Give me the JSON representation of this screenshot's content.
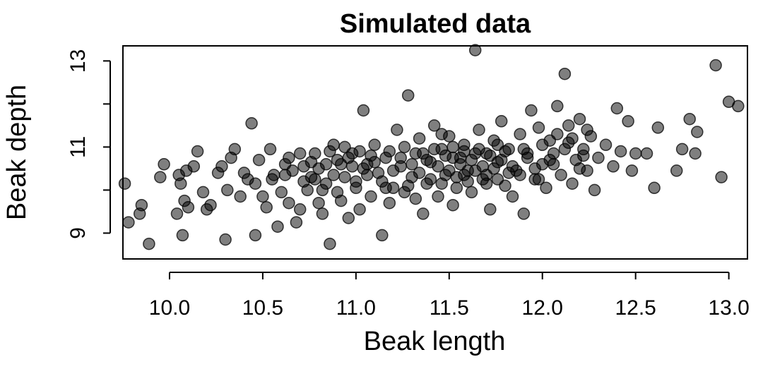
{
  "chart_data": {
    "type": "scatter",
    "title": "Simulated data",
    "xlabel": "Beak length",
    "ylabel": "Beak depth",
    "xlim": [
      9.75,
      13.1
    ],
    "ylim": [
      8.4,
      13.35
    ],
    "xticks": [
      10.0,
      10.5,
      11.0,
      11.5,
      12.0,
      12.5,
      13.0
    ],
    "xtick_labels": [
      "10.0",
      "10.5",
      "11.0",
      "11.5",
      "12.0",
      "12.5",
      "13.0"
    ],
    "yticks": [
      9,
      11,
      13
    ],
    "ytick_labels": [
      "9",
      "11",
      "13"
    ],
    "grid": false,
    "legend": "none",
    "point_color": "#000000",
    "series": [
      {
        "points": [
          [
            9.76,
            10.15
          ],
          [
            9.78,
            9.25
          ],
          [
            9.85,
            9.65
          ],
          [
            9.84,
            9.45
          ],
          [
            9.89,
            8.75
          ],
          [
            9.95,
            10.3
          ],
          [
            9.97,
            10.6
          ],
          [
            10.04,
            9.45
          ],
          [
            10.05,
            10.35
          ],
          [
            10.06,
            10.15
          ],
          [
            10.07,
            8.95
          ],
          [
            10.08,
            9.75
          ],
          [
            10.09,
            10.45
          ],
          [
            10.1,
            9.6
          ],
          [
            10.13,
            10.55
          ],
          [
            10.15,
            10.9
          ],
          [
            10.18,
            9.95
          ],
          [
            10.2,
            9.55
          ],
          [
            10.22,
            9.65
          ],
          [
            10.26,
            10.4
          ],
          [
            10.3,
            8.85
          ],
          [
            10.31,
            10.0
          ],
          [
            10.33,
            10.75
          ],
          [
            10.35,
            10.95
          ],
          [
            10.4,
            10.4
          ],
          [
            10.42,
            10.25
          ],
          [
            10.44,
            11.55
          ],
          [
            10.46,
            8.95
          ],
          [
            10.5,
            9.85
          ],
          [
            10.52,
            9.6
          ],
          [
            10.55,
            10.25
          ],
          [
            10.58,
            9.15
          ],
          [
            10.6,
            9.95
          ],
          [
            10.62,
            10.6
          ],
          [
            10.64,
            10.75
          ],
          [
            10.66,
            10.45
          ],
          [
            10.68,
            9.25
          ],
          [
            10.7,
            9.55
          ],
          [
            10.72,
            10.55
          ],
          [
            10.74,
            10.0
          ],
          [
            10.76,
            10.3
          ],
          [
            10.78,
            10.85
          ],
          [
            10.8,
            9.7
          ],
          [
            10.82,
            9.45
          ],
          [
            10.84,
            10.15
          ],
          [
            10.86,
            8.75
          ],
          [
            10.88,
            10.35
          ],
          [
            10.9,
            9.95
          ],
          [
            10.92,
            10.6
          ],
          [
            10.94,
            11.0
          ],
          [
            10.96,
            9.35
          ],
          [
            10.98,
            10.85
          ],
          [
            11.0,
            10.2
          ],
          [
            11.02,
            9.55
          ],
          [
            11.04,
            11.85
          ],
          [
            11.06,
            10.6
          ],
          [
            11.08,
            9.85
          ],
          [
            11.1,
            11.05
          ],
          [
            11.12,
            10.4
          ],
          [
            11.14,
            8.95
          ],
          [
            11.16,
            10.75
          ],
          [
            11.18,
            9.7
          ],
          [
            11.2,
            10.05
          ],
          [
            11.22,
            11.4
          ],
          [
            11.24,
            10.55
          ],
          [
            11.26,
            9.95
          ],
          [
            11.28,
            12.2
          ],
          [
            11.3,
            10.3
          ],
          [
            11.32,
            10.85
          ],
          [
            11.34,
            11.2
          ],
          [
            11.36,
            9.45
          ],
          [
            11.38,
            10.15
          ],
          [
            11.4,
            10.65
          ],
          [
            11.42,
            11.5
          ],
          [
            11.44,
            9.85
          ],
          [
            11.46,
            10.95
          ],
          [
            11.48,
            10.35
          ],
          [
            11.5,
            11.25
          ],
          [
            11.52,
            9.65
          ],
          [
            11.54,
            10.05
          ],
          [
            11.56,
            10.75
          ],
          [
            11.58,
            11.05
          ],
          [
            11.6,
            10.45
          ],
          [
            11.62,
            9.95
          ],
          [
            11.64,
            13.25
          ],
          [
            11.66,
            11.4
          ],
          [
            11.68,
            10.25
          ],
          [
            11.7,
            10.85
          ],
          [
            11.72,
            9.55
          ],
          [
            11.74,
            11.15
          ],
          [
            11.76,
            10.65
          ],
          [
            11.78,
            11.6
          ],
          [
            11.8,
            10.1
          ],
          [
            11.82,
            10.95
          ],
          [
            11.84,
            9.85
          ],
          [
            11.86,
            10.45
          ],
          [
            11.88,
            11.3
          ],
          [
            11.9,
            9.45
          ],
          [
            11.92,
            10.75
          ],
          [
            11.94,
            11.85
          ],
          [
            11.96,
            10.25
          ],
          [
            11.98,
            11.45
          ],
          [
            12.0,
            10.6
          ],
          [
            12.02,
            10.05
          ],
          [
            12.04,
            11.15
          ],
          [
            12.06,
            10.85
          ],
          [
            12.08,
            11.95
          ],
          [
            12.1,
            10.35
          ],
          [
            12.12,
            12.7
          ],
          [
            12.14,
            11.5
          ],
          [
            12.16,
            10.15
          ],
          [
            12.18,
            10.7
          ],
          [
            12.2,
            11.65
          ],
          [
            12.22,
            10.95
          ],
          [
            12.24,
            10.45
          ],
          [
            12.26,
            11.25
          ],
          [
            12.28,
            10.0
          ],
          [
            12.3,
            10.75
          ],
          [
            12.34,
            11.05
          ],
          [
            12.38,
            10.55
          ],
          [
            12.4,
            11.9
          ],
          [
            12.42,
            10.9
          ],
          [
            12.46,
            11.6
          ],
          [
            12.48,
            10.45
          ],
          [
            12.5,
            10.85
          ],
          [
            12.56,
            10.85
          ],
          [
            12.6,
            10.05
          ],
          [
            12.62,
            11.45
          ],
          [
            12.72,
            10.45
          ],
          [
            12.75,
            10.95
          ],
          [
            12.79,
            11.65
          ],
          [
            12.82,
            10.85
          ],
          [
            12.83,
            11.35
          ],
          [
            12.93,
            12.9
          ],
          [
            12.96,
            10.3
          ],
          [
            13.0,
            12.05
          ],
          [
            13.05,
            11.95
          ],
          [
            10.28,
            10.55
          ],
          [
            10.38,
            9.85
          ],
          [
            10.48,
            10.7
          ],
          [
            10.56,
            10.35
          ],
          [
            10.64,
            9.7
          ],
          [
            10.72,
            10.2
          ],
          [
            10.8,
            10.5
          ],
          [
            10.86,
            10.9
          ],
          [
            10.9,
            10.7
          ],
          [
            10.94,
            10.3
          ],
          [
            10.98,
            10.55
          ],
          [
            11.02,
            10.9
          ],
          [
            11.06,
            10.35
          ],
          [
            11.1,
            10.65
          ],
          [
            11.14,
            10.2
          ],
          [
            11.18,
            10.9
          ],
          [
            11.2,
            10.45
          ],
          [
            11.24,
            10.75
          ],
          [
            11.28,
            10.1
          ],
          [
            11.3,
            10.6
          ],
          [
            11.34,
            10.4
          ],
          [
            11.36,
            10.85
          ],
          [
            11.4,
            10.25
          ],
          [
            11.42,
            10.95
          ],
          [
            11.44,
            10.55
          ],
          [
            11.46,
            10.15
          ],
          [
            11.48,
            10.8
          ],
          [
            11.5,
            10.45
          ],
          [
            11.52,
            11.0
          ],
          [
            11.54,
            10.3
          ],
          [
            11.56,
            10.6
          ],
          [
            11.58,
            10.9
          ],
          [
            11.6,
            10.2
          ],
          [
            11.62,
            10.7
          ],
          [
            11.64,
            10.45
          ],
          [
            11.66,
            10.95
          ],
          [
            11.68,
            10.55
          ],
          [
            11.7,
            10.35
          ],
          [
            11.72,
            10.8
          ],
          [
            11.74,
            10.5
          ],
          [
            11.76,
            10.25
          ],
          [
            11.78,
            10.7
          ],
          [
            11.8,
            10.9
          ],
          [
            11.84,
            10.55
          ],
          [
            11.88,
            10.35
          ],
          [
            11.92,
            10.85
          ],
          [
            11.96,
            10.5
          ],
          [
            12.0,
            11.05
          ],
          [
            12.04,
            10.7
          ],
          [
            12.08,
            11.3
          ],
          [
            12.12,
            10.95
          ],
          [
            12.16,
            11.2
          ],
          [
            12.2,
            10.5
          ],
          [
            12.24,
            11.4
          ],
          [
            10.82,
            10.0
          ],
          [
            10.76,
            10.65
          ],
          [
            10.92,
            9.75
          ],
          [
            11.08,
            10.8
          ],
          [
            11.16,
            10.05
          ],
          [
            11.26,
            11.0
          ],
          [
            11.32,
            9.8
          ],
          [
            11.38,
            10.7
          ],
          [
            11.46,
            11.3
          ],
          [
            11.52,
            10.75
          ],
          [
            11.58,
            10.35
          ],
          [
            11.64,
            10.85
          ],
          [
            11.7,
            10.15
          ],
          [
            11.76,
            11.05
          ],
          [
            11.82,
            10.4
          ],
          [
            11.9,
            10.95
          ],
          [
            11.98,
            10.25
          ],
          [
            12.06,
            10.6
          ],
          [
            12.14,
            11.1
          ],
          [
            12.22,
            10.8
          ],
          [
            10.46,
            10.15
          ],
          [
            10.54,
            10.95
          ],
          [
            10.62,
            10.35
          ],
          [
            10.7,
            10.85
          ],
          [
            10.78,
            10.25
          ],
          [
            10.84,
            10.6
          ],
          [
            10.88,
            11.05
          ],
          [
            10.96,
            10.75
          ],
          [
            11.0,
            10.05
          ],
          [
            11.04,
            10.5
          ]
        ]
      }
    ]
  }
}
